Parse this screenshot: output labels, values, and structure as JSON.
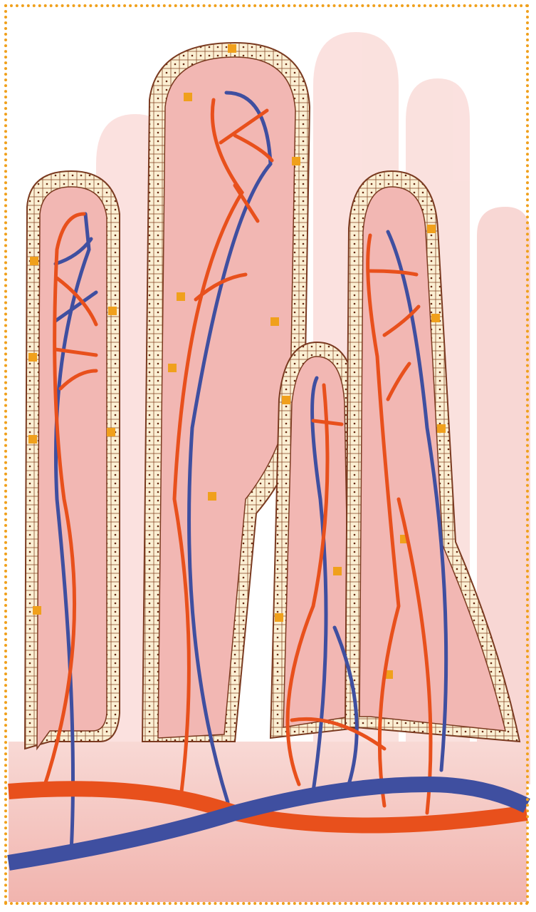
{
  "figure": {
    "subject": "intestinal-villi-cross-section",
    "villi": [
      {
        "id": "villus-1",
        "goblet_cells": "orange"
      },
      {
        "id": "villus-2",
        "goblet_cells": "orange"
      },
      {
        "id": "villus-3",
        "goblet_cells": "orange"
      },
      {
        "id": "villus-4",
        "goblet_cells": "orange"
      }
    ],
    "vessels": [
      "arteriole",
      "venule",
      "capillary-network"
    ]
  },
  "colors": {
    "background": "#ffffff",
    "frame_dots": "#f0a01c",
    "tissue_base": "#f6c8c4",
    "tissue_light": "#f9dcd8",
    "villus_core": "#f2b7b3",
    "epithelium_cell": "#fbf0d4",
    "epithelium_outline": "#7a3a20",
    "goblet_cell": "#f0a01c",
    "artery_red": "#e8501c",
    "vein_blue": "#3f4fa0",
    "nucleus": "#6a2a12"
  }
}
